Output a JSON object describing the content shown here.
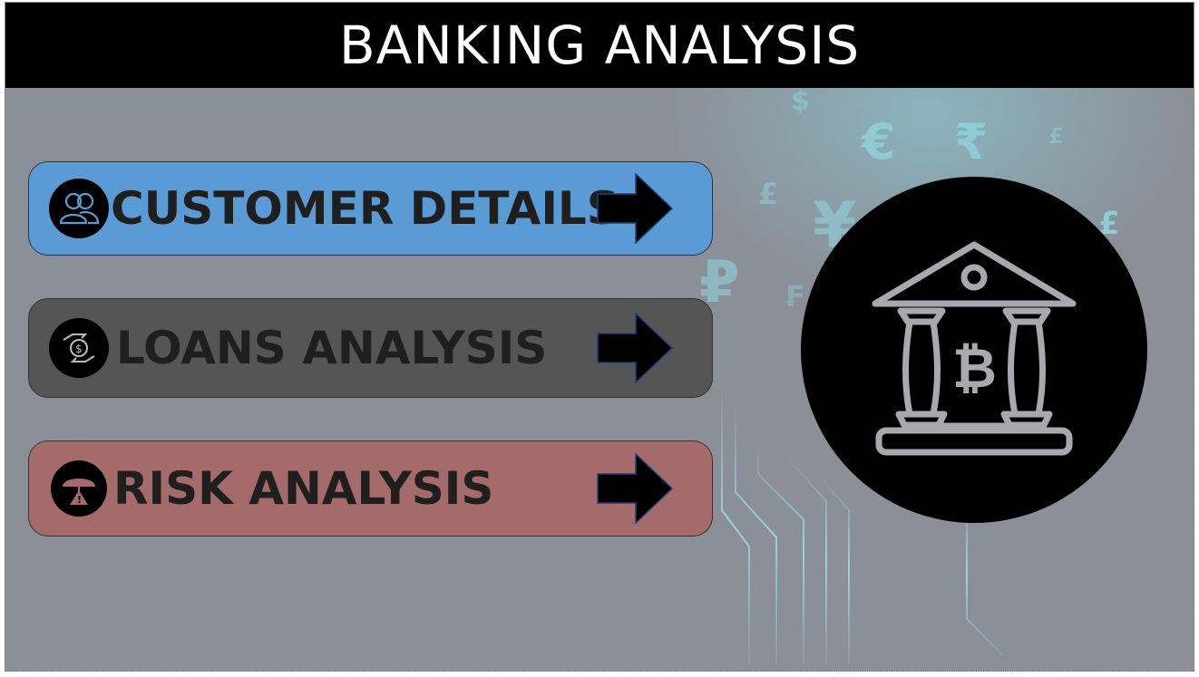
{
  "header": {
    "title": "BANKING ANALYSIS"
  },
  "nav": [
    {
      "label": "CUSTOMER DETAILS",
      "icon": "users-icon",
      "color": "#5b9bd5"
    },
    {
      "label": "LOANS ANALYSIS",
      "icon": "loan-hands-icon",
      "color": "#555555"
    },
    {
      "label": "RISK ANALYSIS",
      "icon": "umbrella-warning-icon",
      "color": "#a56b6b"
    }
  ],
  "illustration": {
    "icon": "bank-bitcoin-icon"
  },
  "currency_symbols": [
    "$",
    "€",
    "₹",
    "£",
    "£",
    "¥",
    "£",
    "₽",
    "₣"
  ],
  "colors": {
    "header_bg": "#000000",
    "canvas_bg": "#8b8f97",
    "accent": "#8cd8e4"
  }
}
